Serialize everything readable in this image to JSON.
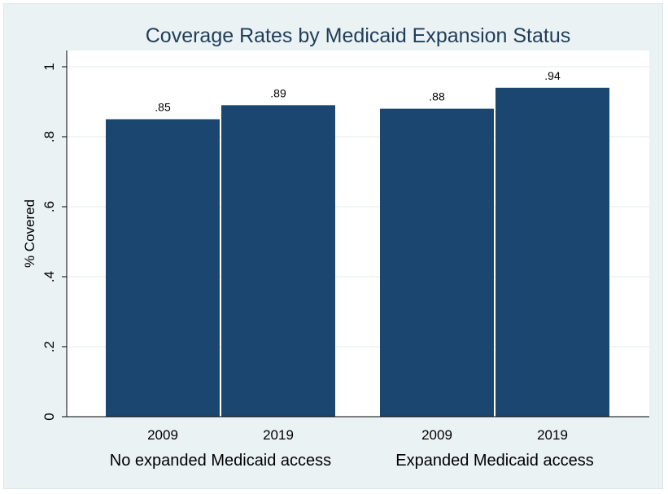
{
  "chart_data": {
    "type": "bar",
    "title": "Coverage Rates by Medicaid Expansion Status",
    "ylabel": "% Covered",
    "ylim": [
      0,
      1
    ],
    "yticks": [
      {
        "value": 0,
        "label": "0"
      },
      {
        "value": 0.2,
        "label": ".2"
      },
      {
        "value": 0.4,
        "label": ".4"
      },
      {
        "value": 0.6,
        "label": ".6"
      },
      {
        "value": 0.8,
        "label": ".8"
      },
      {
        "value": 1,
        "label": "1"
      }
    ],
    "grid": true,
    "bar_color": "#1b4670",
    "background_color": "#eaf2f3",
    "groups": [
      {
        "label": "No expanded Medicaid access",
        "bars": [
          {
            "category": "2009",
            "value": 0.85,
            "value_label": ".85"
          },
          {
            "category": "2019",
            "value": 0.89,
            "value_label": ".89"
          }
        ]
      },
      {
        "label": "Expanded Medicaid access",
        "bars": [
          {
            "category": "2009",
            "value": 0.88,
            "value_label": ".88"
          },
          {
            "category": "2019",
            "value": 0.94,
            "value_label": ".94"
          }
        ]
      }
    ]
  }
}
